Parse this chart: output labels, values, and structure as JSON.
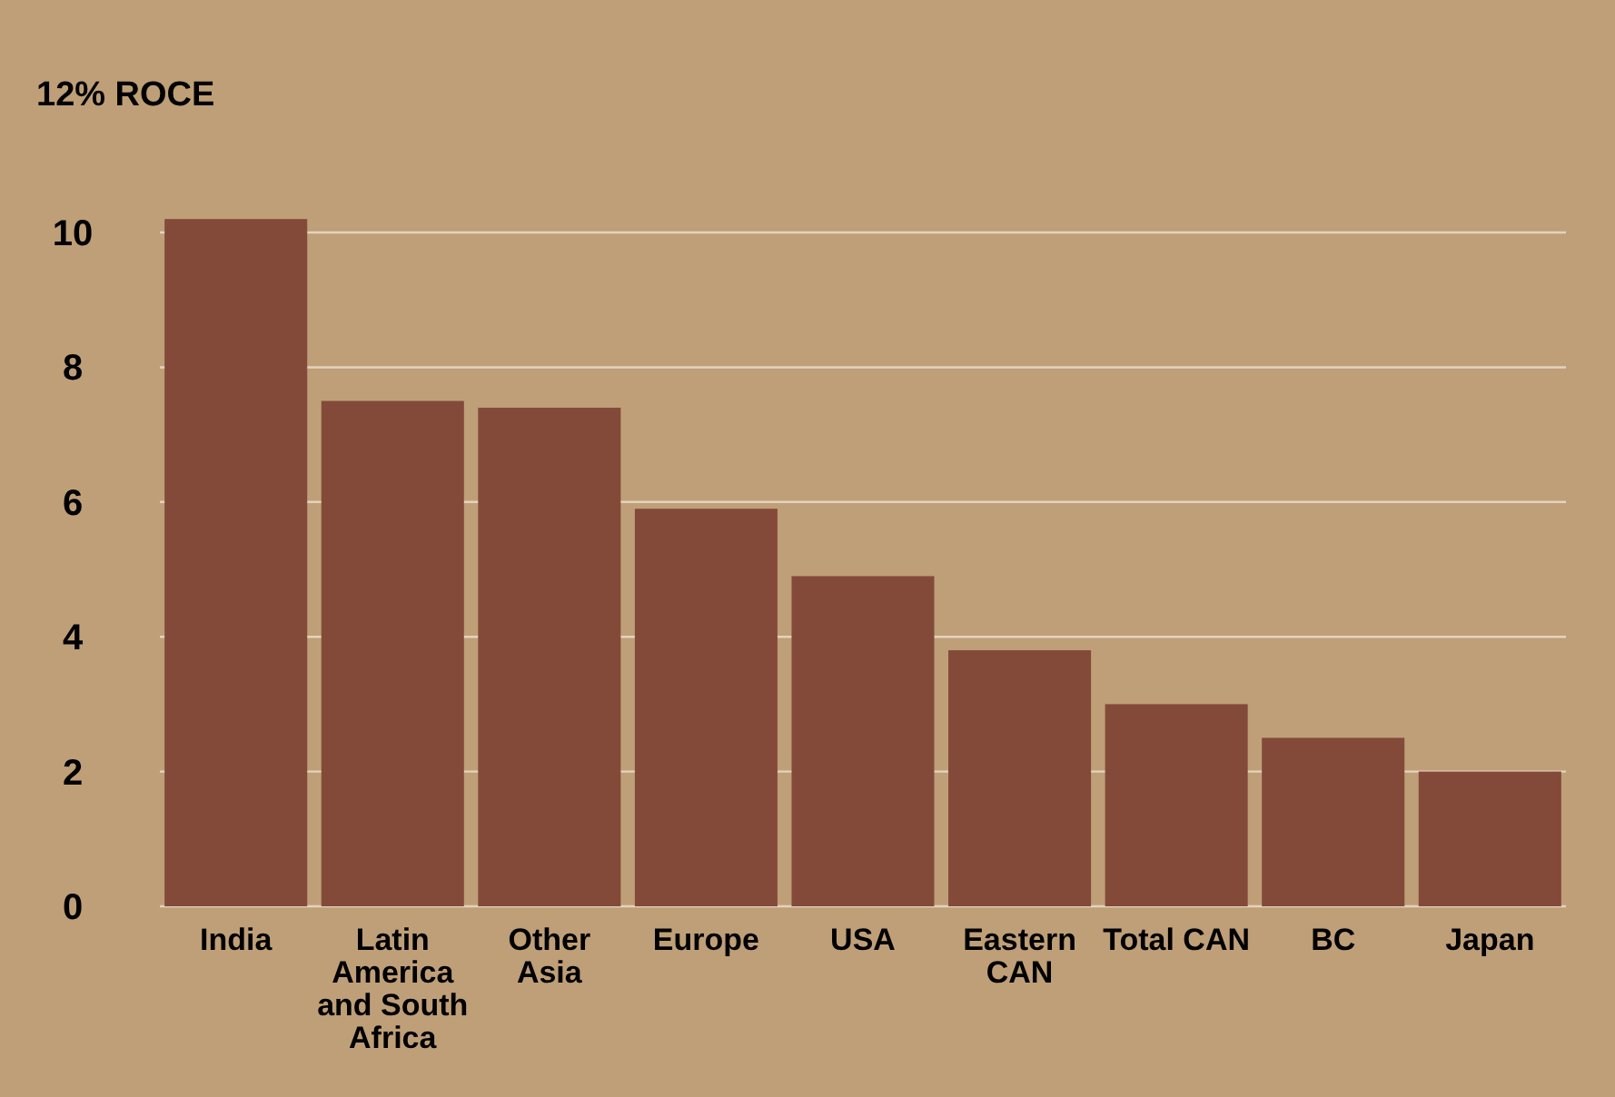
{
  "chart_data": {
    "type": "bar",
    "title": "12% ROCE",
    "categories": [
      "India",
      "Latin America and South Africa",
      "Other Asia",
      "Europe",
      "USA",
      "Eastern CAN",
      "Total CAN",
      "BC",
      "Japan"
    ],
    "values": [
      10.2,
      7.5,
      7.4,
      5.9,
      4.9,
      3.8,
      3.0,
      2.5,
      2.0
    ],
    "color": "#834a39",
    "ylim": [
      0,
      10.2
    ],
    "yticks": [
      0,
      2,
      4,
      6,
      8,
      10
    ],
    "grid": "y"
  }
}
